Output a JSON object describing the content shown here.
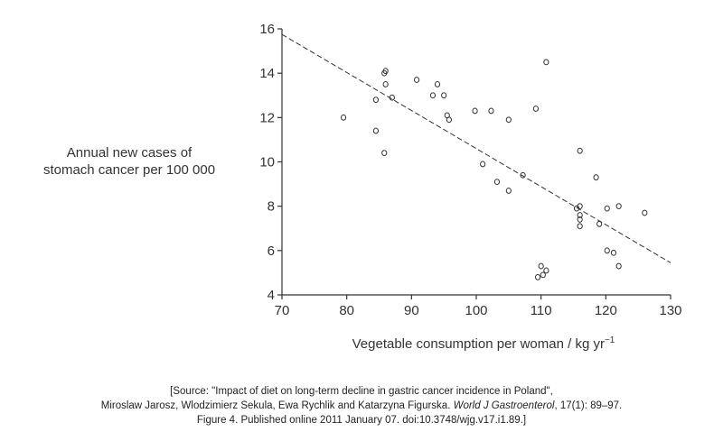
{
  "chart_data": {
    "type": "scatter",
    "ylabel_lines": [
      "Annual new cases of",
      "stomach cancer per 100 000"
    ],
    "xlabel": "Vegetable consumption per woman / kg yr",
    "xlabel_sup": "−1",
    "xlim": [
      70,
      130
    ],
    "ylim": [
      4,
      16
    ],
    "x_ticks": [
      "70",
      "80",
      "90",
      "100",
      "110",
      "120",
      "130"
    ],
    "y_ticks": [
      "4",
      "6",
      "8",
      "10",
      "12",
      "14",
      "16"
    ],
    "grid": false,
    "points": [
      {
        "x": 79.5,
        "y": 12.0
      },
      {
        "x": 84.5,
        "y": 12.8
      },
      {
        "x": 84.5,
        "y": 11.4
      },
      {
        "x": 85.8,
        "y": 14.0
      },
      {
        "x": 86.0,
        "y": 14.1
      },
      {
        "x": 86.0,
        "y": 13.5
      },
      {
        "x": 85.8,
        "y": 10.4
      },
      {
        "x": 87.0,
        "y": 12.9
      },
      {
        "x": 90.8,
        "y": 13.7
      },
      {
        "x": 93.3,
        "y": 13.0
      },
      {
        "x": 94.0,
        "y": 13.5
      },
      {
        "x": 95.0,
        "y": 13.0
      },
      {
        "x": 95.5,
        "y": 12.1
      },
      {
        "x": 95.8,
        "y": 11.9
      },
      {
        "x": 99.8,
        "y": 12.3
      },
      {
        "x": 101.0,
        "y": 9.9
      },
      {
        "x": 102.3,
        "y": 12.3
      },
      {
        "x": 103.2,
        "y": 9.1
      },
      {
        "x": 105.0,
        "y": 11.9
      },
      {
        "x": 105.0,
        "y": 8.7
      },
      {
        "x": 107.2,
        "y": 9.4
      },
      {
        "x": 109.2,
        "y": 12.4
      },
      {
        "x": 110.8,
        "y": 14.5
      },
      {
        "x": 109.5,
        "y": 4.8
      },
      {
        "x": 110.0,
        "y": 5.3
      },
      {
        "x": 110.3,
        "y": 4.9
      },
      {
        "x": 110.8,
        "y": 5.1
      },
      {
        "x": 115.5,
        "y": 7.9
      },
      {
        "x": 116.0,
        "y": 10.5
      },
      {
        "x": 116.0,
        "y": 8.0
      },
      {
        "x": 116.0,
        "y": 7.6
      },
      {
        "x": 116.0,
        "y": 7.4
      },
      {
        "x": 116.0,
        "y": 7.1
      },
      {
        "x": 118.5,
        "y": 9.3
      },
      {
        "x": 119.0,
        "y": 7.2
      },
      {
        "x": 120.2,
        "y": 7.9
      },
      {
        "x": 120.2,
        "y": 6.0
      },
      {
        "x": 121.2,
        "y": 5.9
      },
      {
        "x": 122.0,
        "y": 8.0
      },
      {
        "x": 122.0,
        "y": 5.3
      },
      {
        "x": 126.0,
        "y": 7.7
      }
    ],
    "trendline": {
      "x": [
        70,
        130
      ],
      "y": [
        15.75,
        5.45
      ],
      "style": "dashed"
    }
  },
  "source": {
    "line1": "[Source: \"Impact of diet on long-term decline in gastric cancer incidence in Poland\",",
    "line2_pre": "Miroslaw Jarosz, Wlodzimierz Sekula, Ewa Rychlik and Katarzyna Figurska. ",
    "line2_journal": "World J Gastroenterol",
    "line2_post": ", 17(1): 89–97.",
    "line3": "Figure 4. Published online 2011 January 07. doi:10.3748/wjg.v17.i1.89.]"
  }
}
